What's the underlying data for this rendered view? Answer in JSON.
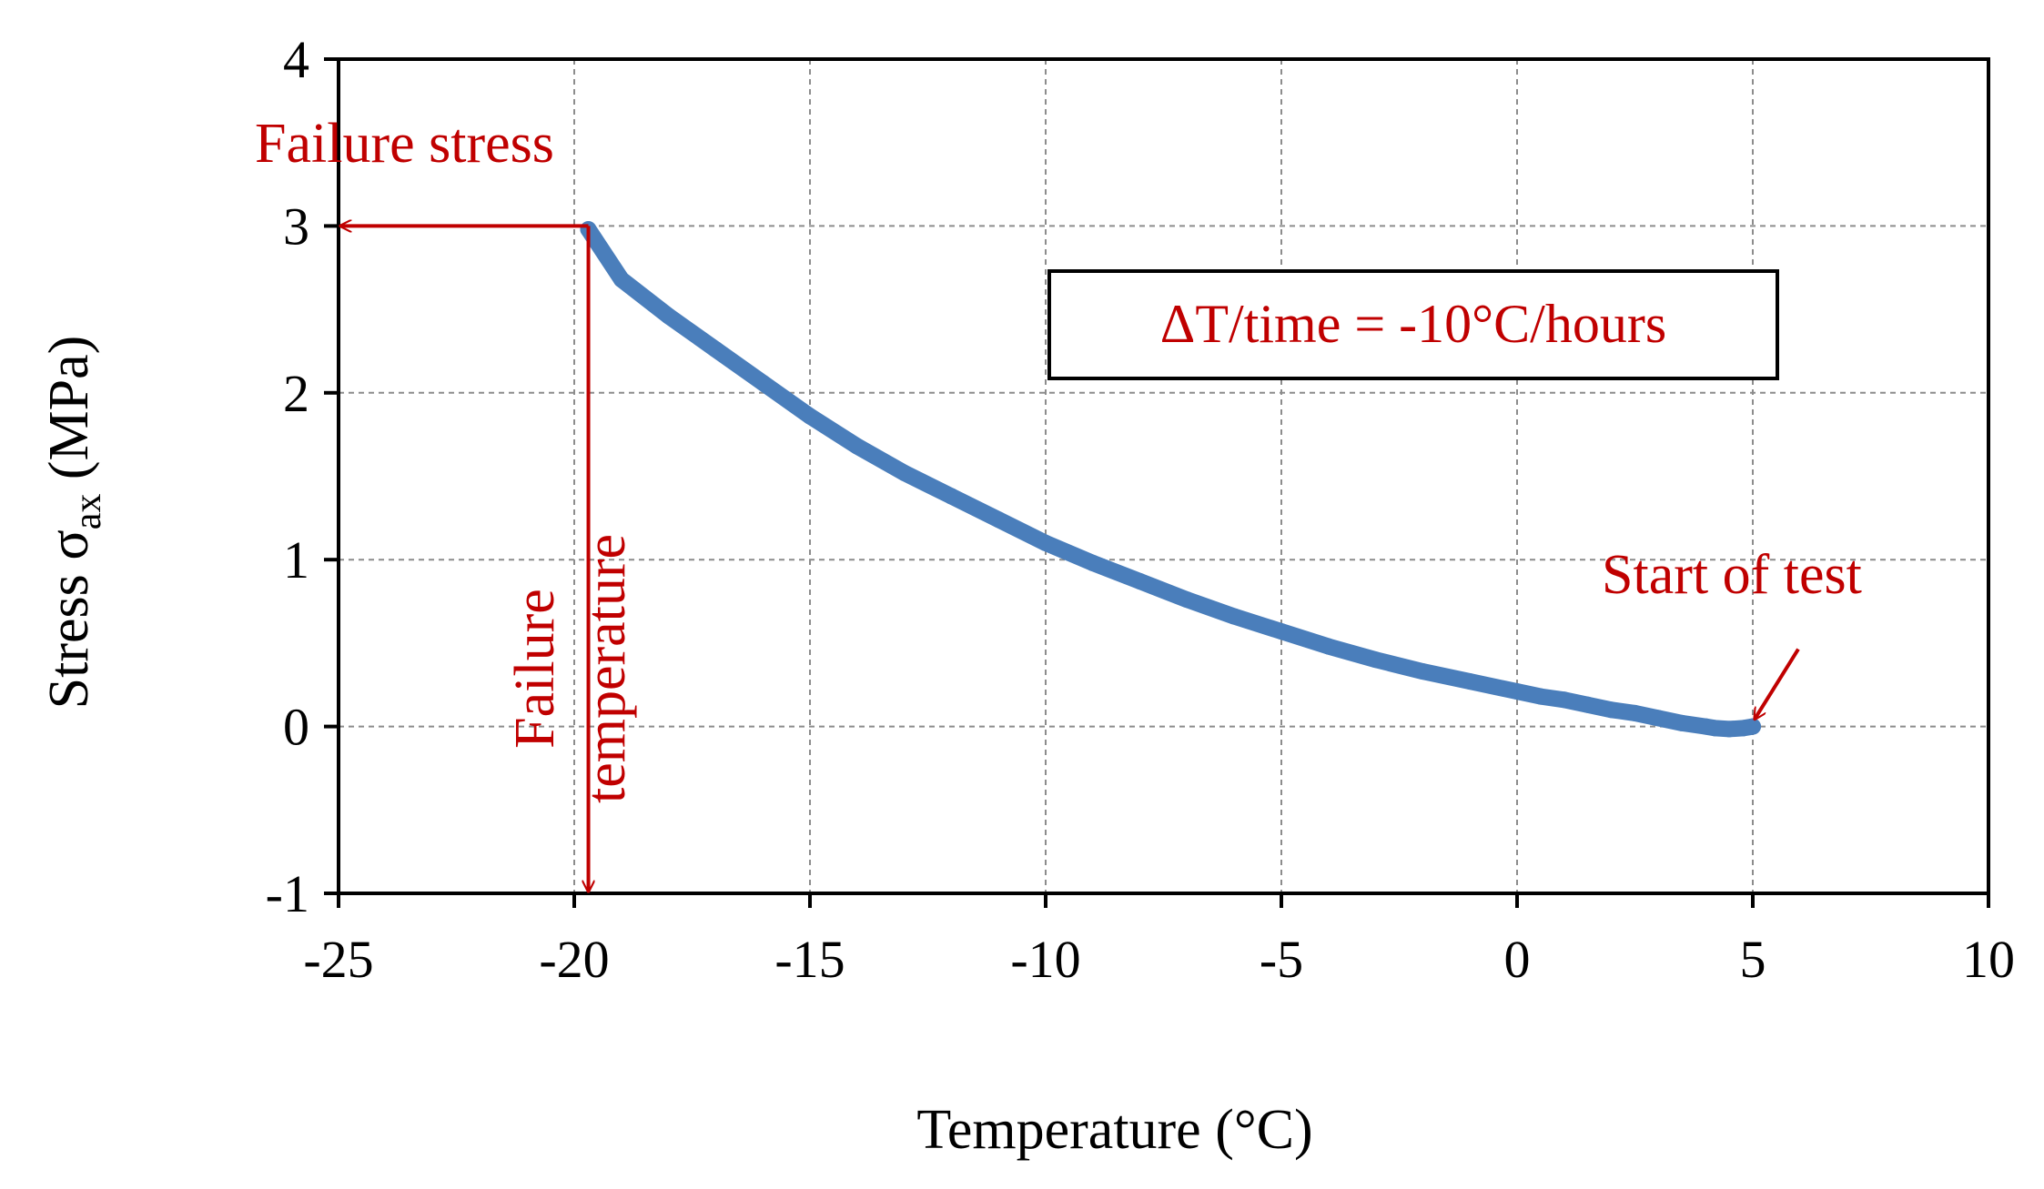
{
  "chart_data": {
    "type": "scatter",
    "title": "",
    "xlabel": "Temperature (°C)",
    "ylabel": "Stress σ_ax (MPa)",
    "ylabel_parts": {
      "main": "Stress σ",
      "sub": "ax",
      "unit": " (MPa)"
    },
    "xlim": [
      -25,
      10
    ],
    "ylim": [
      -1,
      4
    ],
    "x_ticks": [
      -25,
      -20,
      -15,
      -10,
      -5,
      0,
      5,
      10
    ],
    "y_ticks": [
      -1,
      0,
      1,
      2,
      3,
      4
    ],
    "x_tick_labels": [
      "-25",
      "-20",
      "-15",
      "-10",
      "-5",
      "0",
      "5",
      "10"
    ],
    "y_tick_labels": [
      "-1",
      "0",
      "1",
      "2",
      "3",
      "4"
    ],
    "grid": true,
    "series_color": "#4a7ebb",
    "annotation_color": "#c00000",
    "series": [
      {
        "name": "Stress",
        "x": [
          5.0,
          4.8,
          4.5,
          4.2,
          4.0,
          3.5,
          3.0,
          2.5,
          2.0,
          1.5,
          1.0,
          0.5,
          0.0,
          -1.0,
          -2.0,
          -3.0,
          -4.0,
          -5.0,
          -6.0,
          -7.0,
          -8.0,
          -9.0,
          -10.0,
          -11.0,
          -12.0,
          -13.0,
          -14.0,
          -15.0,
          -16.0,
          -17.0,
          -18.0,
          -19.0,
          -19.7
        ],
        "y": [
          0.0,
          -0.01,
          -0.015,
          -0.01,
          0.0,
          0.02,
          0.05,
          0.08,
          0.1,
          0.13,
          0.16,
          0.18,
          0.21,
          0.27,
          0.33,
          0.4,
          0.48,
          0.57,
          0.66,
          0.76,
          0.87,
          0.98,
          1.1,
          1.24,
          1.38,
          1.52,
          1.68,
          1.86,
          2.06,
          2.26,
          2.46,
          2.68,
          2.98
        ]
      }
    ],
    "annotations": {
      "failure_stress": "Failure stress",
      "failure_temperature_line1": "Failure",
      "failure_temperature_line2": "temperature",
      "start_of_test": "Start of test",
      "rate_box": "ΔT/time = -10°C/hours"
    },
    "failure_point": {
      "x": -19.7,
      "y": 3.0
    }
  }
}
